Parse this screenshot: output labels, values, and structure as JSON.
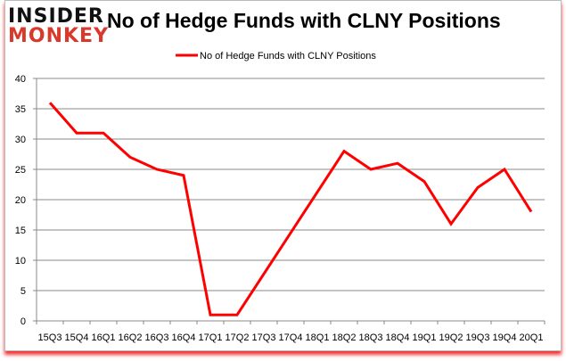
{
  "logo": {
    "line1": "INSIDER",
    "line2": "MONKEY"
  },
  "chart_data": {
    "type": "line",
    "title": "No of Hedge Funds with CLNY Positions",
    "xlabel": "",
    "ylabel": "",
    "ylim": [
      0,
      40
    ],
    "yticks": [
      0,
      5,
      10,
      15,
      20,
      25,
      30,
      35,
      40
    ],
    "grid": true,
    "legend": "top",
    "categories": [
      "15Q3",
      "15Q4",
      "16Q1",
      "16Q2",
      "16Q3",
      "16Q4",
      "17Q1",
      "17Q2",
      "17Q3",
      "17Q4",
      "18Q1",
      "18Q2",
      "18Q3",
      "18Q4",
      "19Q1",
      "19Q2",
      "19Q3",
      "19Q4",
      "20Q1"
    ],
    "series": [
      {
        "name": "No of Hedge Funds with CLNY Positions",
        "color": "#ff0000",
        "values": [
          36,
          31,
          31,
          27,
          25,
          24,
          1,
          1,
          null,
          null,
          null,
          28,
          25,
          26,
          23,
          16,
          22,
          25,
          18
        ]
      }
    ]
  }
}
